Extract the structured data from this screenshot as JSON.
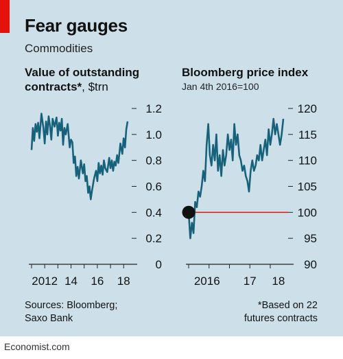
{
  "header": {
    "title": "Fear gauges",
    "subtitle": "Commodities"
  },
  "colors": {
    "background": "#cde0ea",
    "line": "#17617a",
    "accent_red": "#e3120b",
    "reference_line": "#e3120b",
    "marker": "#111111"
  },
  "chart_data": [
    {
      "type": "line",
      "title": "Value of outstanding contracts*",
      "unit": ", $trn",
      "ylim": [
        0,
        1.2
      ],
      "yticks": [
        "1.2",
        "1.0",
        "0.8",
        "0.6",
        "0.4",
        "0.2",
        "0"
      ],
      "xticks": [
        "2012",
        "14",
        "16",
        "18"
      ],
      "y_axis_side": "right",
      "grid": false,
      "series": [
        {
          "x": [
            2011.0,
            2011.1,
            2011.2,
            2011.3,
            2011.4,
            2011.5,
            2011.6,
            2011.75,
            2011.9,
            2012.0,
            2012.1,
            2012.2,
            2012.3,
            2012.4,
            2012.5,
            2012.6,
            2012.75,
            2012.9,
            2013.0,
            2013.1,
            2013.2,
            2013.3,
            2013.4,
            2013.5,
            2013.6,
            2013.75,
            2013.9,
            2014.0,
            2014.1,
            2014.2,
            2014.3,
            2014.4,
            2014.5,
            2014.6,
            2014.75,
            2014.9,
            2015.0,
            2015.1,
            2015.2,
            2015.3,
            2015.4,
            2015.5,
            2015.6,
            2015.75,
            2015.9,
            2016.0,
            2016.1,
            2016.2,
            2016.3,
            2016.4,
            2016.5,
            2016.6,
            2016.75,
            2016.9,
            2017.0,
            2017.1,
            2017.2,
            2017.3,
            2017.4,
            2017.5,
            2017.6,
            2017.75,
            2017.9,
            2018.0,
            2018.1,
            2018.2,
            2018.3
          ],
          "values": [
            0.88,
            1.05,
            0.95,
            1.08,
            1.02,
            1.09,
            0.97,
            1.16,
            1.05,
            0.93,
            1.1,
            1.0,
            1.14,
            1.07,
            0.96,
            1.12,
            1.06,
            1.13,
            0.99,
            1.09,
            1.03,
            1.12,
            0.92,
            1.05,
            1.0,
            1.08,
            0.9,
            0.96,
            0.94,
            0.78,
            0.83,
            0.68,
            0.75,
            0.66,
            0.8,
            0.7,
            0.77,
            0.64,
            0.68,
            0.55,
            0.6,
            0.5,
            0.57,
            0.66,
            0.72,
            0.64,
            0.78,
            0.7,
            0.76,
            0.69,
            0.8,
            0.74,
            0.71,
            0.82,
            0.74,
            0.8,
            0.72,
            0.79,
            0.76,
            0.84,
            0.78,
            0.93,
            0.85,
            0.97,
            0.9,
            1.04,
            1.1
          ]
        }
      ]
    },
    {
      "type": "line",
      "title": "Bloomberg price index",
      "subtitle": "Jan 4th 2016=100",
      "ylim": [
        90,
        120
      ],
      "yticks": [
        "120",
        "115",
        "110",
        "105",
        "100",
        "95",
        "90"
      ],
      "xticks": [
        "2016",
        "17",
        "18"
      ],
      "y_axis_side": "right",
      "grid": false,
      "reference_line": 100,
      "marker_x": 2016.0,
      "series": [
        {
          "x": [
            2016.0,
            2016.04,
            2016.08,
            2016.12,
            2016.16,
            2016.2,
            2016.24,
            2016.28,
            2016.32,
            2016.36,
            2016.4,
            2016.44,
            2016.48,
            2016.52,
            2016.56,
            2016.6,
            2016.64,
            2016.68,
            2016.72,
            2016.76,
            2016.8,
            2016.84,
            2016.88,
            2016.92,
            2016.96,
            2017.0,
            2017.04,
            2017.08,
            2017.12,
            2017.16,
            2017.2,
            2017.24,
            2017.28,
            2017.32,
            2017.36,
            2017.4,
            2017.44,
            2017.48,
            2017.52,
            2017.56,
            2017.6,
            2017.64,
            2017.68,
            2017.72,
            2017.76,
            2017.8,
            2017.84,
            2017.88,
            2017.92,
            2017.96,
            2018.0,
            2018.04,
            2018.08,
            2018.12,
            2018.16,
            2018.2,
            2018.24,
            2018.28,
            2018.32
          ],
          "values": [
            100,
            95,
            98,
            96,
            102,
            101,
            104,
            103,
            105,
            108,
            106,
            113,
            117,
            111,
            109,
            113,
            110,
            115,
            108,
            111,
            107,
            112,
            109,
            111,
            115,
            112,
            114,
            110,
            117,
            113,
            115,
            111,
            110,
            108,
            109,
            107,
            106,
            104,
            108,
            110,
            108,
            109,
            111,
            110,
            113,
            110,
            112,
            114,
            111,
            116,
            113,
            115,
            118,
            115,
            117,
            115,
            113,
            115,
            118
          ]
        }
      ]
    }
  ],
  "footnotes": {
    "sources_line1": "Sources: Bloomberg;",
    "sources_line2": "Saxo Bank",
    "note_line1": "*Based on 22",
    "note_line2": "futures contracts"
  },
  "brand": "Economist.com"
}
